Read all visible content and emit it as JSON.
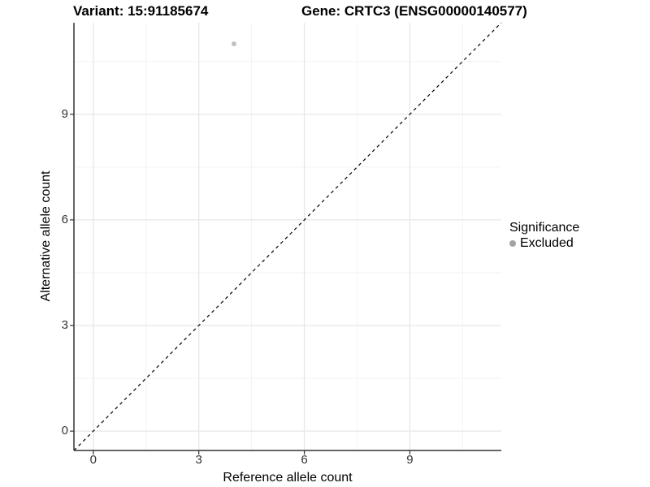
{
  "titles": {
    "variant": "Variant: 15:91185674",
    "gene": "Gene: CRTC3 (ENSG00000140577)"
  },
  "axes": {
    "xlabel": "Reference allele count",
    "ylabel": "Alternative allele count"
  },
  "legend": {
    "title": "Significance",
    "entries": [
      {
        "label": "Excluded",
        "color": "#a3a3a3"
      }
    ]
  },
  "colors": {
    "point": "#c0c0c0",
    "axis_line": "#333333",
    "tick_mark": "#333333",
    "grid_major": "#e7e7e7",
    "grid_minor": "#f2f2f2",
    "identity_line": "#000000"
  },
  "chart_data": {
    "type": "scatter",
    "title_left": "Variant: 15:91185674",
    "title_right": "Gene: CRTC3 (ENSG00000140577)",
    "xlabel": "Reference allele count",
    "ylabel": "Alternative allele count",
    "xlim": [
      -0.55,
      11.6
    ],
    "ylim": [
      -0.55,
      11.6
    ],
    "x_ticks": [
      0,
      3,
      6,
      9
    ],
    "y_ticks": [
      0,
      3,
      6,
      9
    ],
    "grid_major": [
      0,
      3,
      6,
      9
    ],
    "grid_minor": [
      1.5,
      4.5,
      7.5,
      10.5
    ],
    "points": [
      {
        "x": 4,
        "y": 11,
        "series": "Excluded",
        "size": 3
      }
    ],
    "reference_line": {
      "kind": "identity",
      "style": "dashed",
      "from": -0.55,
      "to": 11.6
    },
    "legend_position": "right",
    "legend_title": "Significance",
    "legend_entries": [
      "Excluded"
    ]
  }
}
